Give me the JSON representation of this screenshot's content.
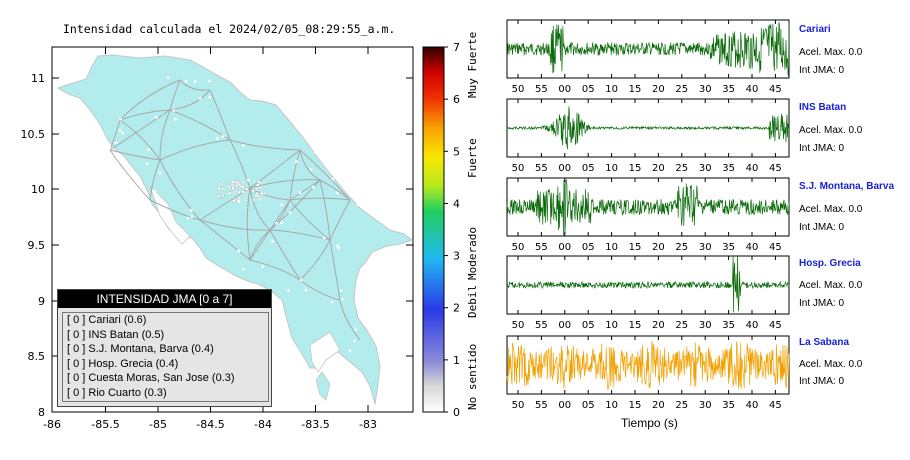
{
  "title": "Intensidad calculada el 2024/02/05_08:29:55_a.m.",
  "map": {
    "x_ticks": [
      "-86",
      "-85.5",
      "-85",
      "-84.5",
      "-84",
      "-83.5",
      "-83"
    ],
    "y_ticks": [
      "11",
      "10.5",
      "10",
      "9.5",
      "9",
      "8.5",
      "8"
    ],
    "land_color": "#b3ecec",
    "road_color": "#a8a8a8"
  },
  "legend": {
    "header": "INTENSIDAD JMA [0 a 7]",
    "items": [
      "[ 0 ]  Cariari (0.6)",
      "[ 0 ]  INS Batan (0.5)",
      "[ 0 ]  S.J. Montana, Barva (0.4)",
      "[ 0 ]  Hosp. Grecia (0.4)",
      "[ 0 ]  Cuesta Moras, San Jose (0.3)",
      "[ 0 ]  Rio Cuarto (0.3)"
    ]
  },
  "colorbar": {
    "ticks": [
      "7",
      "6",
      "5",
      "4",
      "3",
      "2",
      "1",
      "0"
    ],
    "labels": [
      "Muy Fuerte",
      "Fuerte",
      "Moderado",
      "Debil",
      "No sentido"
    ]
  },
  "seismograms": {
    "x_ticks": [
      "50",
      "55",
      "00",
      "05",
      "10",
      "15",
      "20",
      "25",
      "30",
      "35",
      "40",
      "45"
    ],
    "x_label": "Tiempo (s)",
    "stations": [
      {
        "name": "Cariari",
        "acel": "Acel. Max. 0.0",
        "jma": "Int JMA: 0",
        "color": "#0a6b0a"
      },
      {
        "name": "INS Batan",
        "acel": "Acel. Max. 0.0",
        "jma": "Int JMA: 0",
        "color": "#0a6b0a"
      },
      {
        "name": "S.J. Montana, Barva",
        "acel": "Acel. Max. 0.0",
        "jma": "Int JMA: 0",
        "color": "#0a6b0a"
      },
      {
        "name": "Hosp. Grecia",
        "acel": "Acel. Max. 0.0",
        "jma": "Int JMA: 0",
        "color": "#0a6b0a"
      },
      {
        "name": "La Sabana",
        "acel": "Acel. Max. 0.0",
        "jma": "Int JMA: 0",
        "color": "#f2a000"
      }
    ]
  }
}
